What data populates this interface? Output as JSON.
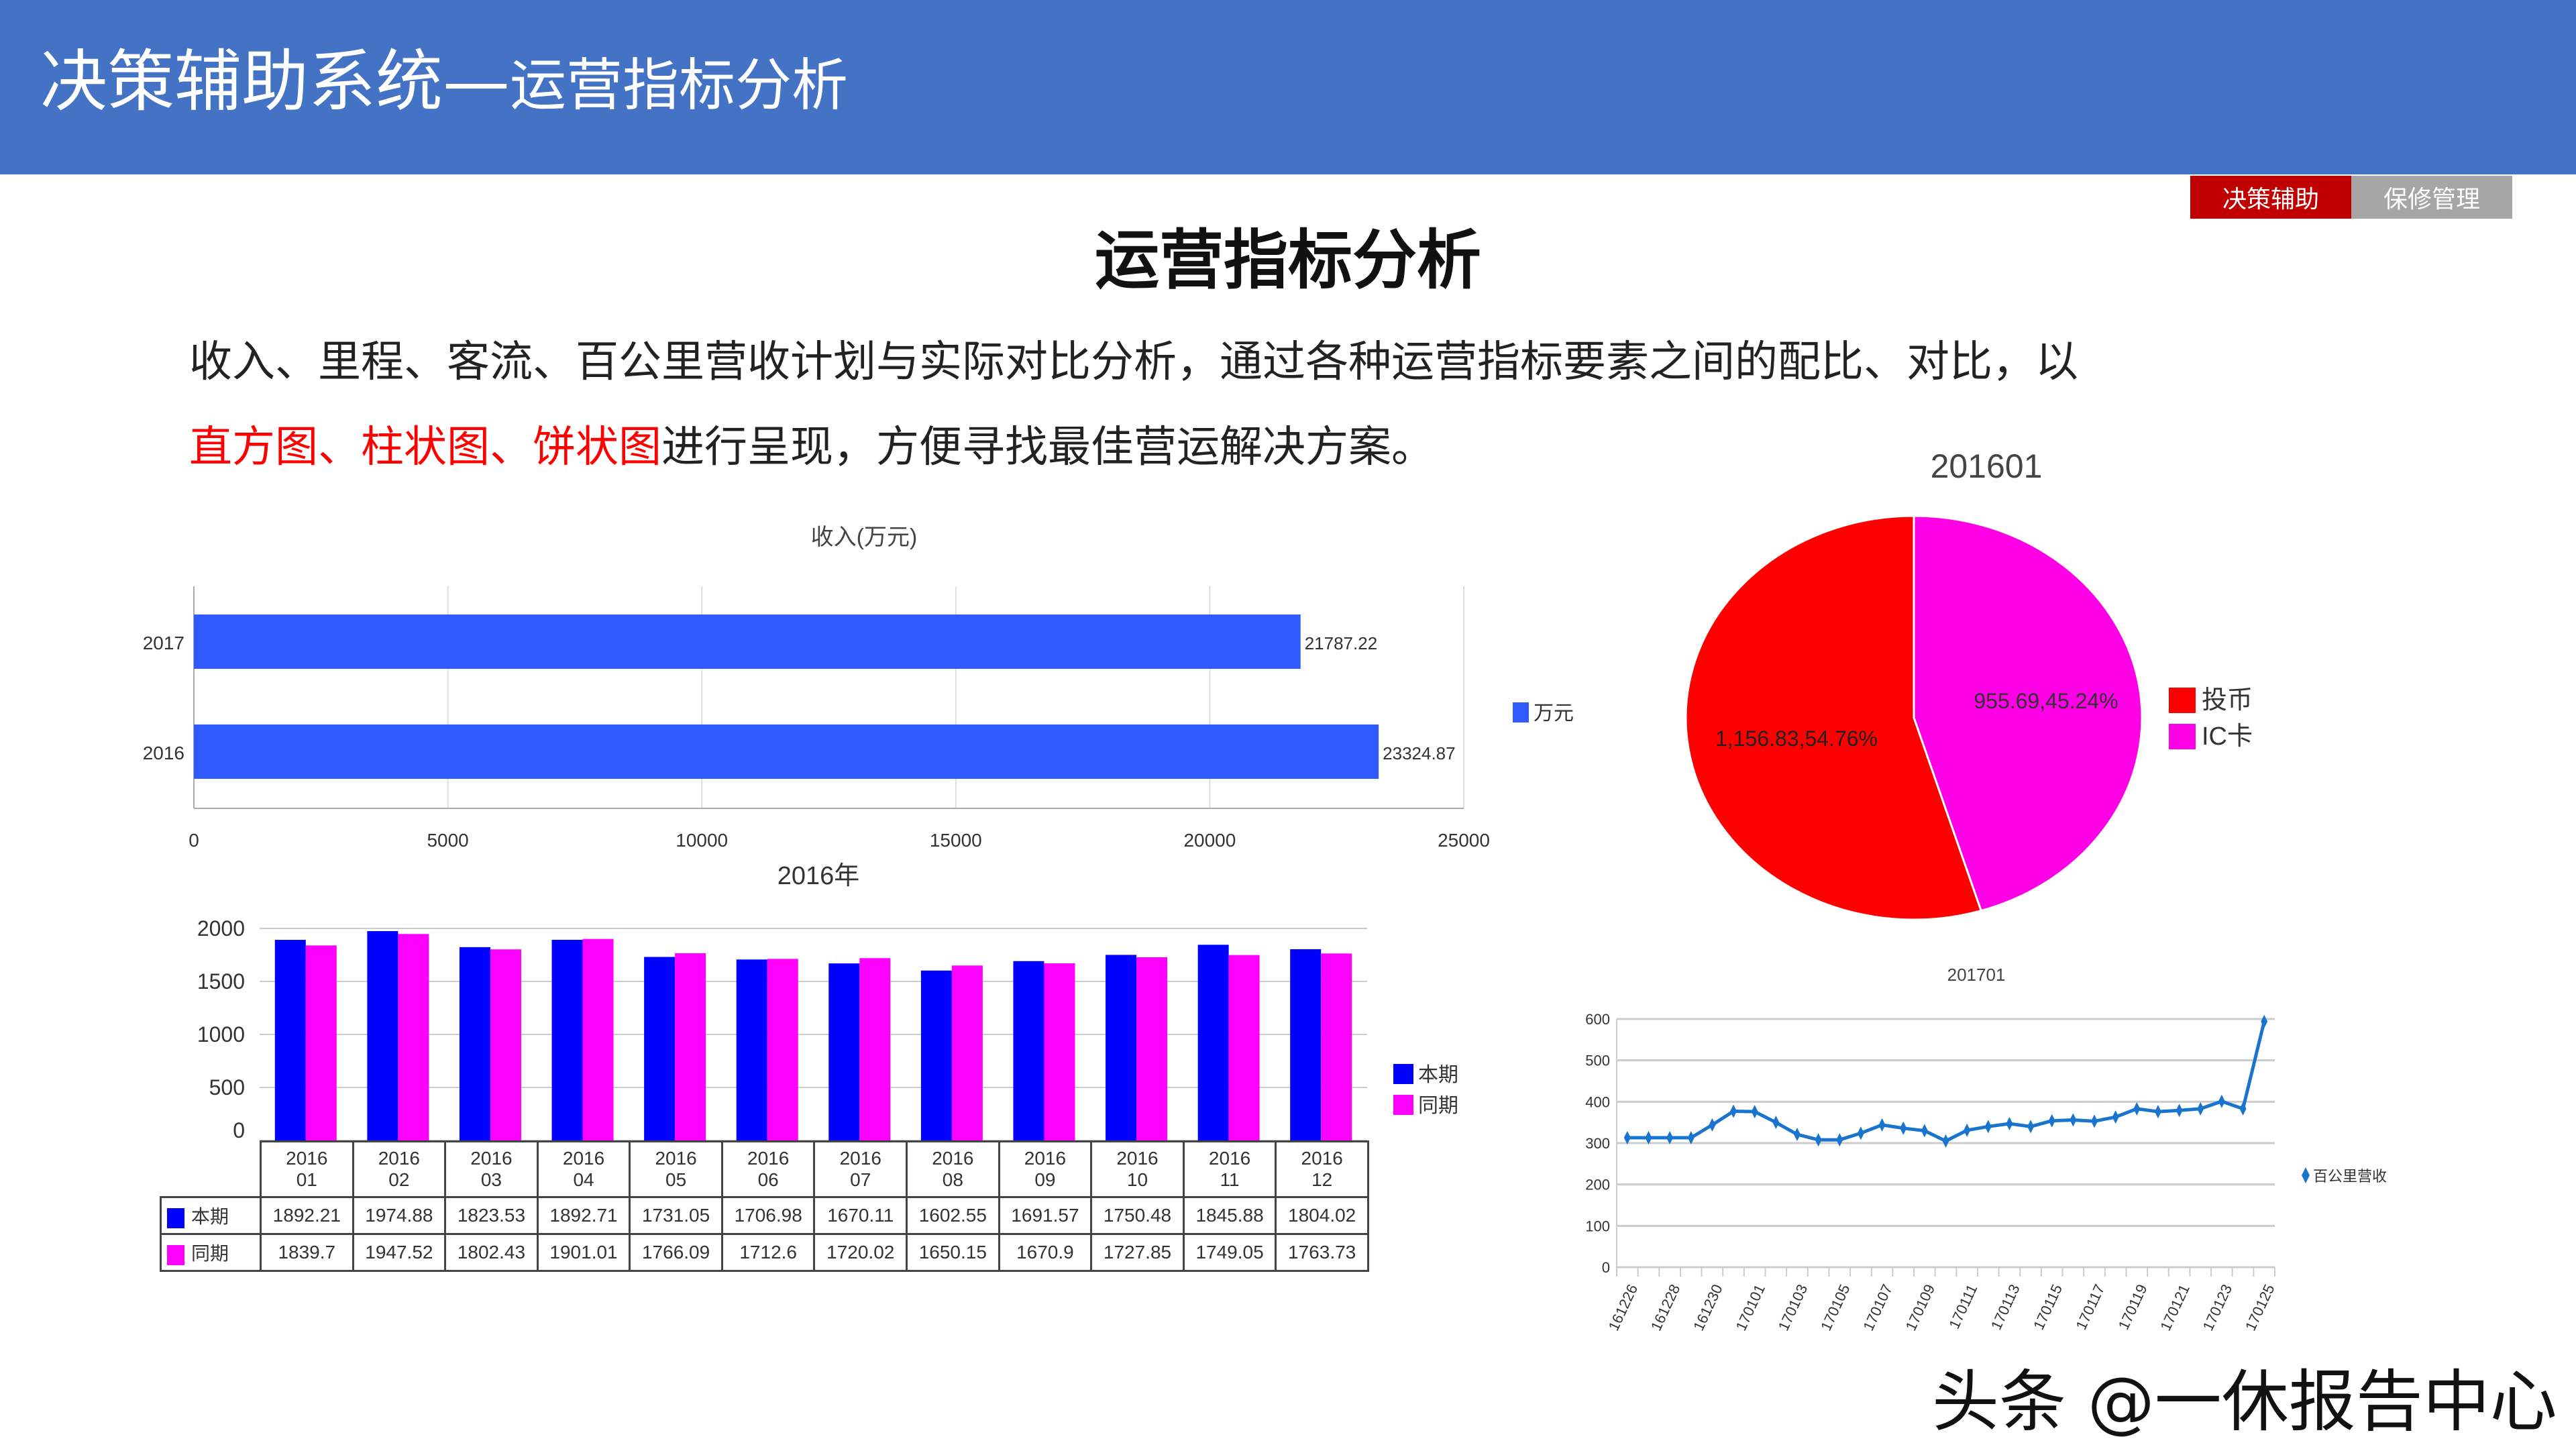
{
  "header": {
    "title_main": "决策辅助系统—",
    "title_sub": "运营指标分析"
  },
  "nav": [
    {
      "label": "决策辅助",
      "color": "#C00000"
    },
    {
      "label": "保修管理",
      "color": "#A6A6A6"
    }
  ],
  "heading": "运营指标分析",
  "intro": {
    "line1": "收入、里程、客流、百公里营收计划与实际对比分析，通过各种运营指标要素之间的配比、对比，以",
    "highlight": "直方图、柱状图、饼状图",
    "line2_rest": "进行呈现，方便寻找最佳营运解决方案。"
  },
  "watermark": "头条 @一休报告中心",
  "chart_data": [
    {
      "type": "bar",
      "orientation": "horizontal",
      "title": "收入(万元)",
      "categories": [
        "2017",
        "2016"
      ],
      "values": [
        21787.22,
        23324.87
      ],
      "value_labels": [
        "21787.22",
        "23324.87"
      ],
      "xlim": [
        0,
        25000
      ],
      "xticks": [
        "0",
        "5000",
        "10000",
        "15000",
        "20000",
        "25000"
      ],
      "legend": "万元",
      "legend_placement": "right",
      "color": "#2F5BFF"
    },
    {
      "type": "bar",
      "title": "2016年",
      "categories": [
        "2016 01",
        "2016 02",
        "2016 03",
        "2016 04",
        "2016 05",
        "2016 06",
        "2016 07",
        "2016 08",
        "2016 09",
        "2016 10",
        "2016 11",
        "2016 12"
      ],
      "series": [
        {
          "name": "本期",
          "color": "#0000FF",
          "values": [
            1892.21,
            1974.88,
            1823.53,
            1892.71,
            1731.05,
            1706.98,
            1670.11,
            1602.55,
            1691.57,
            1750.48,
            1845.88,
            1804.02
          ],
          "labels": [
            "1892.21",
            "1974.88",
            "1823.53",
            "1892.71",
            "1731.05",
            "1706.98",
            "1670.11",
            "1602.55",
            "1691.57",
            "1750.48",
            "1845.88",
            "1804.02"
          ]
        },
        {
          "name": "同期",
          "color": "#FF00FF",
          "values": [
            1839.7,
            1947.52,
            1802.43,
            1901.01,
            1766.09,
            1712.6,
            1720.02,
            1650.15,
            1670.9,
            1727.85,
            1749.05,
            1763.73
          ],
          "labels": [
            "1839.7",
            "1947.52",
            "1802.43",
            "1901.01",
            "1766.09",
            "1712.6",
            "1720.02",
            "1650.15",
            "1670.9",
            "1727.85",
            "1749.05",
            "1763.73"
          ]
        }
      ],
      "ylim": [
        0,
        2000
      ],
      "yticks": [
        "0",
        "500",
        "1000",
        "1500",
        "2000"
      ],
      "legend_placement": "right",
      "data_table": true
    },
    {
      "type": "pie",
      "title": "201601",
      "slices": [
        {
          "name": "IC卡",
          "value": 955.69,
          "percent": 45.24,
          "label": "955.69,45.24%",
          "color": "#FF00E6"
        },
        {
          "name": "投币",
          "value": 1156.83,
          "percent": 54.76,
          "label": "1,156.83,54.76%",
          "color": "#FF0000"
        }
      ],
      "legend": [
        "投币",
        "IC卡"
      ],
      "legend_placement": "right"
    },
    {
      "type": "line",
      "title": "201701",
      "series_name": "百公里营收",
      "color": "#1874CD",
      "x": [
        "161226",
        "161227",
        "161228",
        "161229",
        "161230",
        "161231",
        "170101",
        "170102",
        "170103",
        "170104",
        "170105",
        "170106",
        "170107",
        "170108",
        "170109",
        "170110",
        "170111",
        "170112",
        "170113",
        "170114",
        "170115",
        "170116",
        "170117",
        "170118",
        "170119",
        "170120",
        "170121",
        "170122",
        "170123",
        "170124",
        "170125"
      ],
      "y": [
        313,
        313,
        313,
        313,
        344,
        377,
        376,
        350,
        321,
        308,
        308,
        324,
        344,
        336,
        330,
        305,
        331,
        340,
        347,
        340,
        354,
        356,
        353,
        363,
        383,
        376,
        379,
        383,
        401,
        383,
        594
      ],
      "xtick_labels": [
        "161226",
        "161228",
        "161230",
        "170101",
        "170103",
        "170105",
        "170107",
        "170109",
        "170111",
        "170113",
        "170115",
        "170117",
        "170119",
        "170121",
        "170123",
        "170125"
      ],
      "ylim": [
        0,
        600
      ],
      "yticks": [
        "0",
        "100",
        "200",
        "300",
        "400",
        "500",
        "600"
      ],
      "legend_placement": "right"
    }
  ]
}
